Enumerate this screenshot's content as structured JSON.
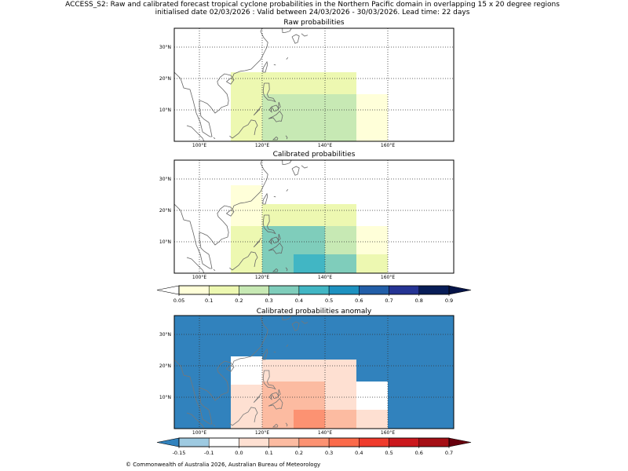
{
  "figure": {
    "title_line1": "ACCESS_S2: Raw and calibrated forecast tropical cyclone probabilities in the Northern Pacific domain in overlapping 15 x 20 degree regions",
    "title_line2": "initialised date 02/03/2026 :  Valid between 24/03/2026 - 30/03/2026. Lead time: 22 days",
    "footer": "© Commonwealth of Australia 2026, Australian Bureau of Meteorology"
  },
  "chart_data": [
    {
      "type": "heatmap",
      "title": "Raw probabilities",
      "x_range_degE": [
        92,
        181
      ],
      "y_range_degN": [
        0,
        36
      ],
      "x_ticks": [
        {
          "value": 100,
          "label": "100°E"
        },
        {
          "value": 120,
          "label": "120°E"
        },
        {
          "value": 140,
          "label": "140°E"
        },
        {
          "value": 160,
          "label": "160°E"
        }
      ],
      "y_ticks": [
        {
          "value": 10,
          "label": "10°N"
        },
        {
          "value": 20,
          "label": "20°N"
        },
        {
          "value": 30,
          "label": "30°N"
        }
      ],
      "grid": true,
      "colorbar": "probability",
      "cells": [
        {
          "lon": [
            110,
            120
          ],
          "lat": [
            15,
            22
          ],
          "value": 0.1
        },
        {
          "lon": [
            120,
            150
          ],
          "lat": [
            15,
            22
          ],
          "value": 0.15
        },
        {
          "lon": [
            110,
            120
          ],
          "lat": [
            0,
            15
          ],
          "value": 0.15
        },
        {
          "lon": [
            120,
            150
          ],
          "lat": [
            0,
            15
          ],
          "value": 0.25
        },
        {
          "lon": [
            150,
            160
          ],
          "lat": [
            0,
            15
          ],
          "value": 0.05
        }
      ]
    },
    {
      "type": "heatmap",
      "title": "Calibrated probabilities",
      "x_range_degE": [
        92,
        181
      ],
      "y_range_degN": [
        0,
        36
      ],
      "x_ticks": [
        {
          "value": 100,
          "label": "100°E"
        },
        {
          "value": 120,
          "label": "120°E"
        },
        {
          "value": 140,
          "label": "140°E"
        },
        {
          "value": 160,
          "label": "160°E"
        }
      ],
      "y_ticks": [
        {
          "value": 10,
          "label": "10°N"
        },
        {
          "value": 20,
          "label": "20°N"
        },
        {
          "value": 30,
          "label": "30°N"
        }
      ],
      "grid": true,
      "colorbar": "probability",
      "cells": [
        {
          "lon": [
            110,
            120
          ],
          "lat": [
            22,
            28
          ],
          "value": 0.05
        },
        {
          "lon": [
            110,
            120
          ],
          "lat": [
            15,
            22
          ],
          "value": 0.05
        },
        {
          "lon": [
            120,
            150
          ],
          "lat": [
            15,
            22
          ],
          "value": 0.15
        },
        {
          "lon": [
            110,
            120
          ],
          "lat": [
            0,
            15
          ],
          "value": 0.15
        },
        {
          "lon": [
            120,
            140
          ],
          "lat": [
            0,
            15
          ],
          "value": 0.35
        },
        {
          "lon": [
            140,
            150
          ],
          "lat": [
            6,
            15
          ],
          "value": 0.25
        },
        {
          "lon": [
            150,
            160
          ],
          "lat": [
            6,
            15
          ],
          "value": 0.05
        },
        {
          "lon": [
            150,
            160
          ],
          "lat": [
            0,
            6
          ],
          "value": 0.15
        },
        {
          "lon": [
            130,
            140
          ],
          "lat": [
            0,
            6
          ],
          "value": 0.45
        },
        {
          "lon": [
            140,
            150
          ],
          "lat": [
            0,
            6
          ],
          "value": 0.35
        }
      ]
    },
    {
      "type": "heatmap",
      "title": "Calibrated probabilities anomaly",
      "x_range_degE": [
        92,
        181
      ],
      "y_range_degN": [
        0,
        36
      ],
      "x_ticks": [
        {
          "value": 100,
          "label": "100°E"
        },
        {
          "value": 120,
          "label": "120°E"
        },
        {
          "value": 140,
          "label": "140°E"
        },
        {
          "value": 160,
          "label": "160°E"
        }
      ],
      "y_ticks": [
        {
          "value": 10,
          "label": "10°N"
        },
        {
          "value": 20,
          "label": "20°N"
        },
        {
          "value": 30,
          "label": "30°N"
        }
      ],
      "grid": true,
      "colorbar": "anomaly",
      "background_value": -0.2,
      "cells": [
        {
          "lon": [
            110,
            120
          ],
          "lat": [
            21,
            23
          ],
          "value": -0.1
        },
        {
          "lon": [
            110,
            120
          ],
          "lat": [
            14,
            21
          ],
          "value": -0.1
        },
        {
          "lon": [
            120,
            150
          ],
          "lat": [
            15,
            22
          ],
          "value": 0.05
        },
        {
          "lon": [
            110,
            120
          ],
          "lat": [
            0,
            14
          ],
          "value": 0.05
        },
        {
          "lon": [
            120,
            140
          ],
          "lat": [
            6,
            15
          ],
          "value": 0.15
        },
        {
          "lon": [
            140,
            150
          ],
          "lat": [
            6,
            15
          ],
          "value": 0.05
        },
        {
          "lon": [
            150,
            160
          ],
          "lat": [
            6,
            15
          ],
          "value": -0.1
        },
        {
          "lon": [
            150,
            160
          ],
          "lat": [
            0,
            6
          ],
          "value": 0.05
        },
        {
          "lon": [
            120,
            130
          ],
          "lat": [
            0,
            6
          ],
          "value": 0.15
        },
        {
          "lon": [
            130,
            140
          ],
          "lat": [
            0,
            6
          ],
          "value": 0.25
        },
        {
          "lon": [
            140,
            150
          ],
          "lat": [
            0,
            6
          ],
          "value": 0.15
        }
      ]
    }
  ],
  "colorbars": {
    "probability": {
      "boundaries": [
        0.05,
        0.1,
        0.2,
        0.3,
        0.4,
        0.5,
        0.6,
        0.7,
        0.8,
        0.9
      ],
      "labels": [
        "0.05",
        "0.1",
        "0.2",
        "0.3",
        "0.4",
        "0.5",
        "0.6",
        "0.7",
        "0.8",
        "0.9"
      ],
      "colors": [
        "#ffffd9",
        "#edf8b1",
        "#c7e9b4",
        "#7fcdbb",
        "#41b6c4",
        "#1d91c0",
        "#225ea8",
        "#253494",
        "#081d58"
      ],
      "under_color": "#ffffff",
      "over_color": "#061448"
    },
    "anomaly": {
      "boundaries": [
        -0.15,
        -0.1,
        0.0,
        0.1,
        0.2,
        0.3,
        0.4,
        0.5,
        0.6,
        0.7
      ],
      "labels": [
        "-0.15",
        "-0.1",
        "0.0",
        "0.1",
        "0.2",
        "0.3",
        "0.4",
        "0.5",
        "0.6",
        "0.7"
      ],
      "colors": [
        "#9ecae1",
        "#ffffff",
        "#fee0d2",
        "#fcbba1",
        "#fc9272",
        "#fb6a4a",
        "#ef3b2c",
        "#cb181d",
        "#a50f15"
      ],
      "under_color": "#3182bd",
      "over_color": "#67000d"
    }
  }
}
